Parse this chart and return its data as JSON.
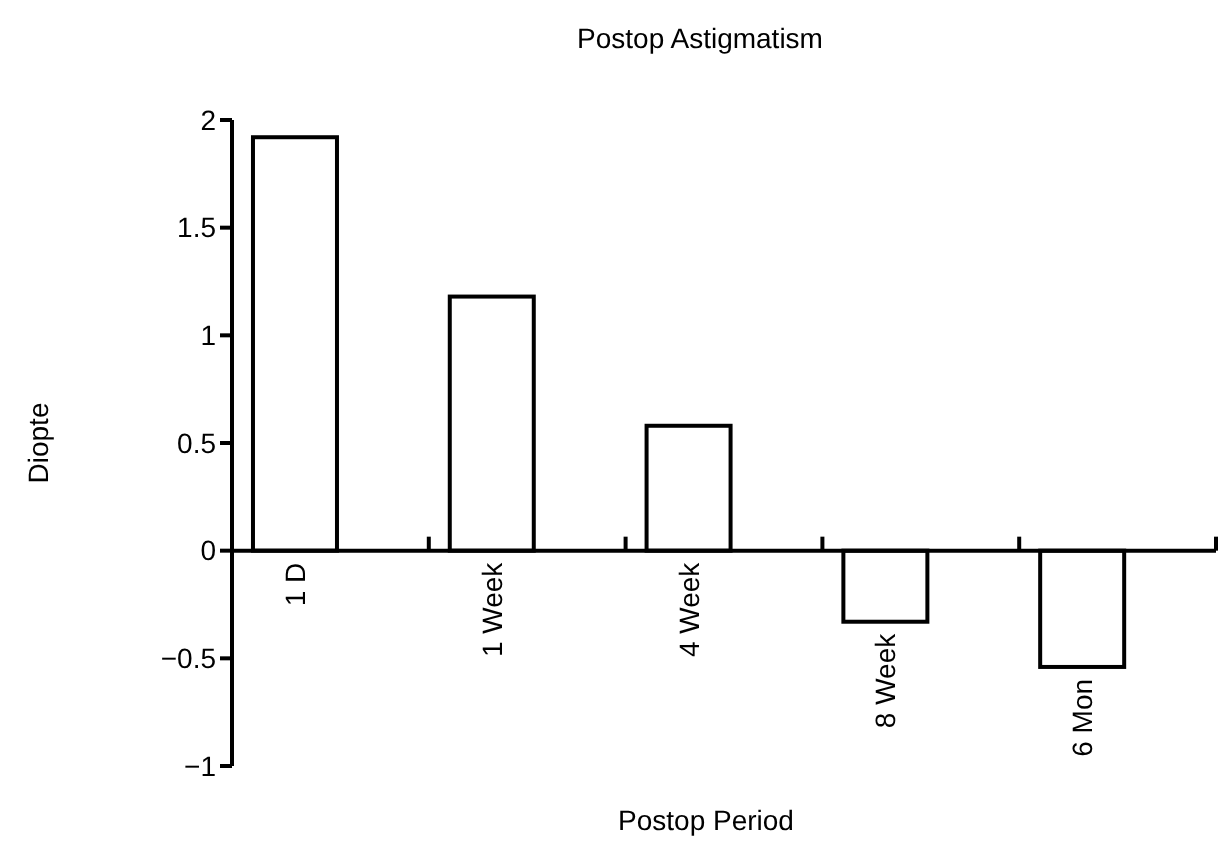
{
  "chart_data": {
    "type": "bar",
    "title": "Postop Astigmatism",
    "xlabel": "Postop Period",
    "ylabel": "Diopte",
    "categories": [
      "1 D",
      "1 Week",
      "4 Week",
      "8 Week",
      "6 Mon"
    ],
    "values": [
      1.92,
      1.18,
      0.58,
      -0.33,
      -0.54
    ],
    "color": "#ffffff",
    "ylim": [
      -1,
      2
    ],
    "yticks": [
      {
        "value": -1,
        "label": "−1"
      },
      {
        "value": -0.5,
        "label": "−0.5"
      },
      0,
      0.5,
      1,
      1.5,
      2
    ],
    "grid": false
  }
}
